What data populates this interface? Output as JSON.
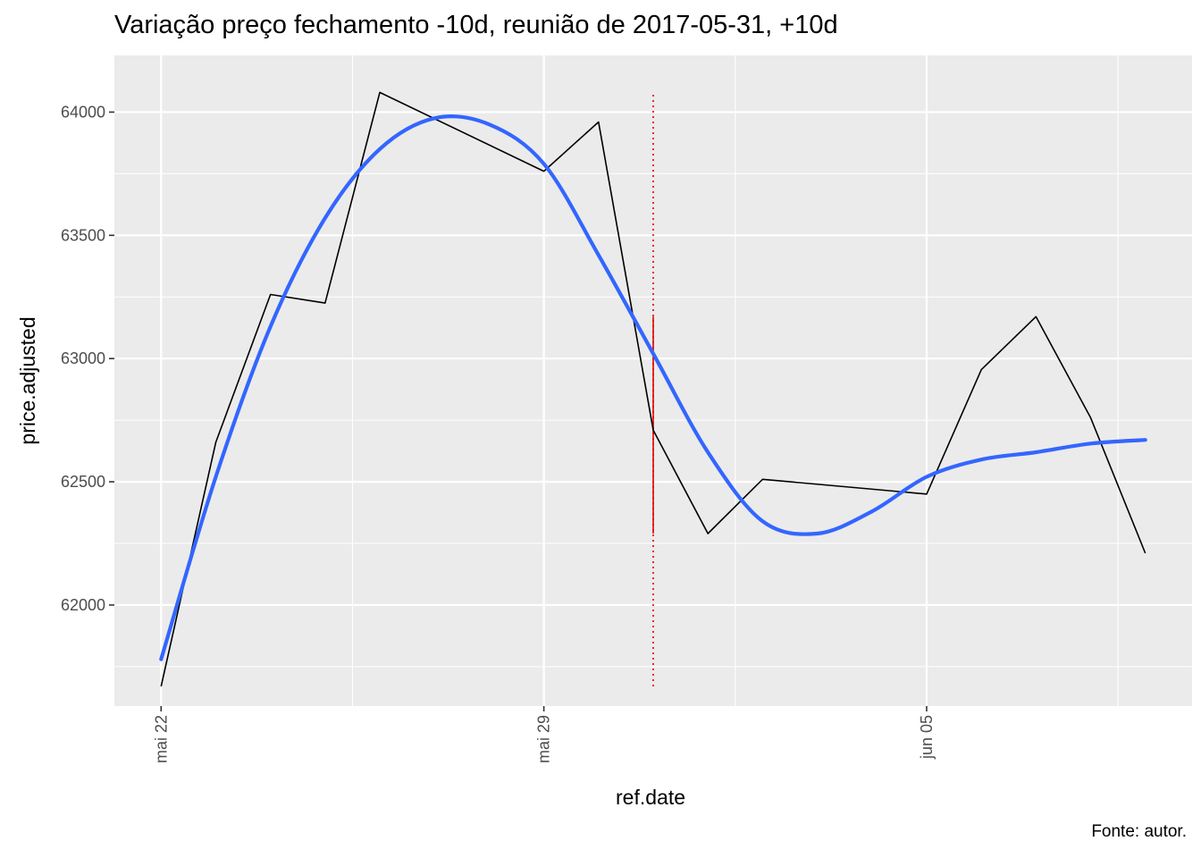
{
  "chart_data": {
    "type": "line",
    "title": "Variação preço fechamento -10d, reunião de 2017-05-31, +10d",
    "xlabel": "ref.date",
    "ylabel": "price.adjusted",
    "caption": "Fonte: autor.",
    "x_tick_labels": [
      "mai 22",
      "mai 29",
      "jun 05"
    ],
    "x_ticks": [
      "2017-05-22",
      "2017-05-29",
      "2017-06-05"
    ],
    "x_minor_ticks": [
      "2017-05-25T12:00",
      "2017-06-01T12:00",
      "2017-06-08T12:00"
    ],
    "xlim": [
      "2017-05-21T03:30",
      "2017-06-09T20:30"
    ],
    "y_ticks": [
      62000,
      62500,
      63000,
      63500,
      64000
    ],
    "ylim": [
      61590,
      64230
    ],
    "grid": true,
    "series": [
      {
        "points": [
          {
            "date": "2017-05-22",
            "value": 61670
          },
          {
            "date": "2017-05-23",
            "value": 62660
          },
          {
            "date": "2017-05-24",
            "value": 63260
          },
          {
            "date": "2017-05-25",
            "value": 63225
          },
          {
            "date": "2017-05-26",
            "value": 64080
          },
          {
            "date": "2017-05-29",
            "value": 63760
          },
          {
            "date": "2017-05-30",
            "value": 63960
          },
          {
            "date": "2017-05-31",
            "value": 62710
          },
          {
            "date": "2017-06-01",
            "value": 62290
          },
          {
            "date": "2017-06-02",
            "value": 62510
          },
          {
            "date": "2017-06-05",
            "value": 62450
          },
          {
            "date": "2017-06-06",
            "value": 62955
          },
          {
            "date": "2017-06-07",
            "value": 63170
          },
          {
            "date": "2017-06-08",
            "value": 62760
          },
          {
            "date": "2017-06-09",
            "value": 62210
          }
        ],
        "color": "#000000"
      },
      {
        "type": "smooth",
        "points": [
          {
            "date": "2017-05-22",
            "value": 61780
          },
          {
            "date": "2017-05-23",
            "value": 62520
          },
          {
            "date": "2017-05-24",
            "value": 63130
          },
          {
            "date": "2017-05-25",
            "value": 63570
          },
          {
            "date": "2017-05-26",
            "value": 63850
          },
          {
            "date": "2017-05-27",
            "value": 63975
          },
          {
            "date": "2017-05-28",
            "value": 63950
          },
          {
            "date": "2017-05-29",
            "value": 63790
          },
          {
            "date": "2017-05-30",
            "value": 63420
          },
          {
            "date": "2017-05-31",
            "value": 63020
          },
          {
            "date": "2017-06-01",
            "value": 62620
          },
          {
            "date": "2017-06-02",
            "value": 62340
          },
          {
            "date": "2017-06-03",
            "value": 62290
          },
          {
            "date": "2017-06-04",
            "value": 62380
          },
          {
            "date": "2017-06-05",
            "value": 62520
          },
          {
            "date": "2017-06-06",
            "value": 62590
          },
          {
            "date": "2017-06-07",
            "value": 62620
          },
          {
            "date": "2017-06-08",
            "value": 62655
          },
          {
            "date": "2017-06-09",
            "value": 62670
          }
        ],
        "color": "#3366ff"
      }
    ],
    "meeting_marker": {
      "date": "2017-05-31",
      "dotted_range": [
        61670,
        64080
      ],
      "solid_range": [
        62290,
        63170
      ],
      "color": "#e00000"
    }
  }
}
